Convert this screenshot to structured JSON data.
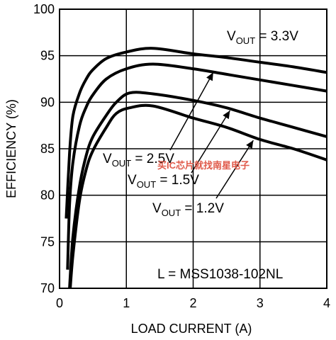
{
  "chart_data": {
    "type": "line",
    "xlabel": "LOAD CURRENT (A)",
    "ylabel": "EFFICIENCY (%)",
    "xlim": [
      0,
      4
    ],
    "ylim": [
      70,
      100
    ],
    "x_ticks": [
      0,
      1,
      2,
      3,
      4
    ],
    "y_ticks": [
      70,
      75,
      80,
      85,
      90,
      95,
      100
    ],
    "grid": true,
    "series": [
      {
        "name_main": "V",
        "name_sub": "OUT",
        "name_value": " = 3.3V",
        "x": [
          0.1,
          0.15,
          0.2,
          0.3,
          0.4,
          0.5,
          0.7,
          1.0,
          1.4,
          2.0,
          2.5,
          3.0,
          3.5,
          4.0
        ],
        "y": [
          77.5,
          84.5,
          88.5,
          91.0,
          92.5,
          93.5,
          94.7,
          95.4,
          95.8,
          95.2,
          94.8,
          94.3,
          93.8,
          93.2
        ]
      },
      {
        "name_main": "V",
        "name_sub": "OUT",
        "name_value": " = 2.5V",
        "x": [
          0.12,
          0.15,
          0.2,
          0.3,
          0.4,
          0.5,
          0.7,
          1.0,
          1.4,
          2.0,
          2.5,
          3.0,
          3.5,
          4.0
        ],
        "y": [
          72.0,
          79.0,
          83.5,
          87.5,
          89.5,
          90.8,
          92.5,
          93.6,
          94.1,
          93.6,
          93.0,
          92.4,
          91.8,
          91.2
        ]
      },
      {
        "name_main": "V",
        "name_sub": "OUT",
        "name_value": " = 1.5V",
        "x": [
          0.15,
          0.2,
          0.3,
          0.4,
          0.5,
          0.7,
          0.85,
          1.05,
          1.4,
          2.0,
          2.5,
          3.0,
          3.5,
          4.0
        ],
        "y": [
          70.0,
          75.5,
          81.0,
          84.3,
          86.3,
          88.6,
          90.0,
          91.0,
          90.9,
          90.2,
          89.4,
          88.3,
          87.3,
          86.3
        ]
      },
      {
        "name_main": "V",
        "name_sub": "OUT",
        "name_value": " = 1.2V",
        "x": [
          0.16,
          0.2,
          0.3,
          0.4,
          0.5,
          0.7,
          0.85,
          1.05,
          1.4,
          2.0,
          2.5,
          3.0,
          3.5,
          4.0
        ],
        "y": [
          70.0,
          73.5,
          79.5,
          82.8,
          84.8,
          87.3,
          88.8,
          89.4,
          89.6,
          88.3,
          87.3,
          86.0,
          85.0,
          83.8
        ]
      }
    ],
    "annotation": "L = MSS1038-102NL",
    "watermark": "买IC芯片就找南星电子"
  }
}
